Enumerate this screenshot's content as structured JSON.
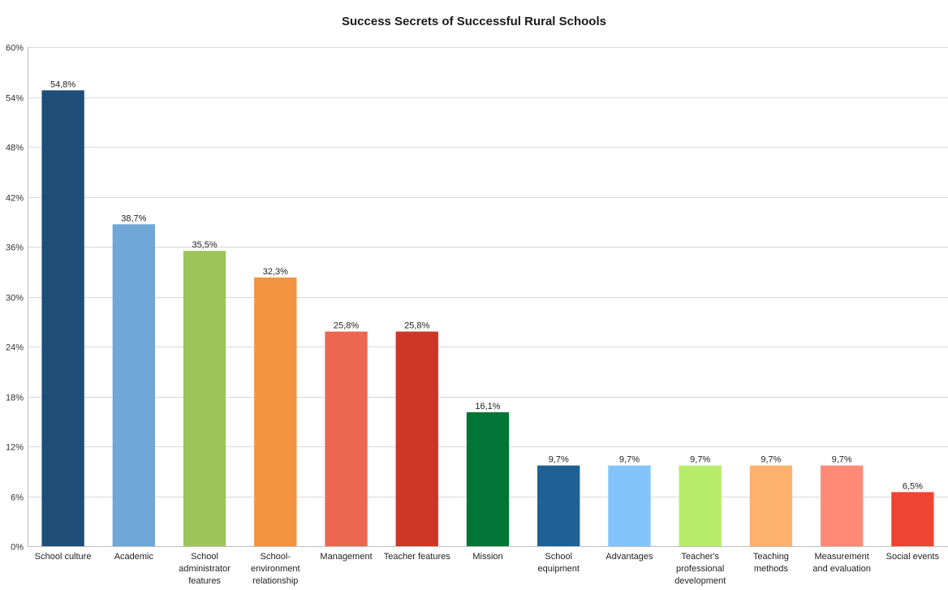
{
  "chart_data": {
    "type": "bar",
    "title": "Success Secrets of Successful Rural Schools",
    "xlabel": "",
    "ylabel": "",
    "ylim": [
      0,
      60
    ],
    "yticks": [
      0,
      6,
      12,
      18,
      24,
      30,
      36,
      42,
      48,
      54,
      60
    ],
    "ytick_labels": [
      "0%",
      "6%",
      "12%",
      "18%",
      "24%",
      "30%",
      "36%",
      "42%",
      "48%",
      "54%",
      "60%"
    ],
    "grid": true,
    "legend": "none",
    "categories": [
      "School culture",
      "Academic",
      "School administrator features",
      "School-environment relationship",
      "Management",
      "Teacher features",
      "Mission",
      "School equipment",
      "Advantages",
      "Teacher's professional development",
      "Teaching methods",
      "Measurement and evaluation",
      "Social events"
    ],
    "category_lines": [
      [
        "School culture"
      ],
      [
        "Academic"
      ],
      [
        "School",
        "administrator",
        "features"
      ],
      [
        "School-",
        "environment",
        "relationship"
      ],
      [
        "Management"
      ],
      [
        "Teacher features"
      ],
      [
        "Mission"
      ],
      [
        "School",
        "equipment"
      ],
      [
        "Advantages"
      ],
      [
        "Teacher's",
        "professional",
        "development"
      ],
      [
        "Teaching",
        "methods"
      ],
      [
        "Measurement",
        "and evaluation"
      ],
      [
        "Social events"
      ]
    ],
    "values": [
      54.8,
      38.7,
      35.5,
      32.3,
      25.8,
      25.8,
      16.1,
      9.7,
      9.7,
      9.7,
      9.7,
      9.7,
      6.5
    ],
    "value_labels": [
      "54,8%",
      "38,7%",
      "35,5%",
      "32,3%",
      "25,8%",
      "25,8%",
      "16,1%",
      "9,7%",
      "9,7%",
      "9,7%",
      "9,7%",
      "9,7%",
      "6,5%"
    ],
    "colors": [
      "#1f4e79",
      "#6fa8d6",
      "#9dc45a",
      "#f39440",
      "#ec6751",
      "#cd3728",
      "#007535",
      "#1f6196",
      "#83c4fb",
      "#b6ec6a",
      "#feb16e",
      "#ff8a75",
      "#f04432"
    ]
  }
}
